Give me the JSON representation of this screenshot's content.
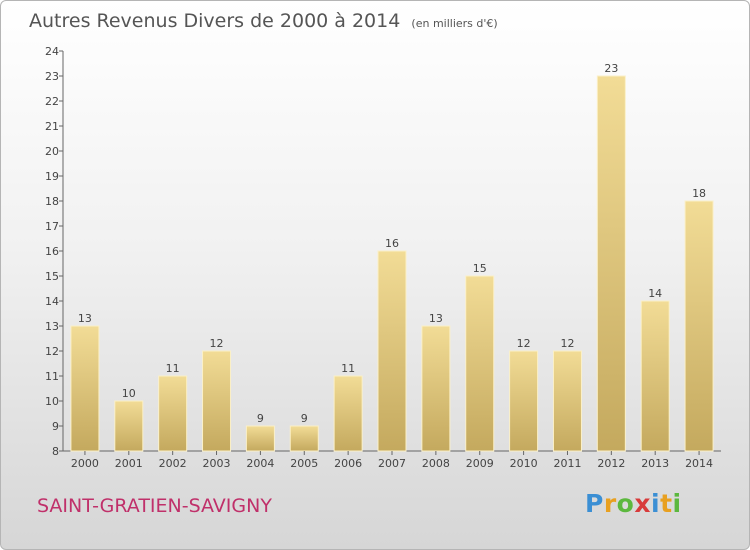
{
  "chart_data": {
    "type": "bar",
    "title": "Autres Revenus Divers de 2000 à 2014",
    "subtitle": "(en milliers d'€)",
    "categories": [
      "2000",
      "2001",
      "2002",
      "2003",
      "2004",
      "2005",
      "2006",
      "2007",
      "2008",
      "2009",
      "2010",
      "2011",
      "2012",
      "2013",
      "2014"
    ],
    "values": [
      13,
      10,
      11,
      12,
      9,
      9,
      11,
      16,
      13,
      15,
      12,
      12,
      23,
      14,
      18
    ],
    "ylim": [
      8,
      24
    ],
    "yticks": [
      8,
      9,
      10,
      11,
      12,
      13,
      14,
      15,
      16,
      17,
      18,
      19,
      20,
      21,
      22,
      23,
      24
    ],
    "grid": false,
    "colors": {
      "bar_top": "#f2dc96",
      "bar_bottom": "#c4a95e",
      "axis": "#666666"
    }
  },
  "place": "SAINT-GRATIEN-SAVIGNY",
  "logo": {
    "letters": [
      "P",
      "r",
      "o",
      "x",
      "i",
      "t",
      "i"
    ],
    "colors": [
      "#3b8fd4",
      "#e8a020",
      "#5cb83e",
      "#d83a3a",
      "#3b8fd4",
      "#e8a020",
      "#5cb83e"
    ]
  }
}
